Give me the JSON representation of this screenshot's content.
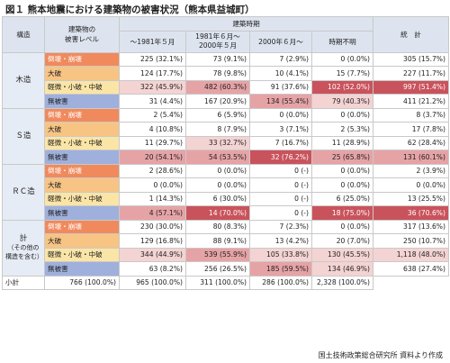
{
  "title": "図１ 熊本地震における建築物の被害状況（熊本県益城町）",
  "header": {
    "structure": "構造",
    "level_line1": "建築物の",
    "level_line2": "被害レベル",
    "period_group": "建築時期",
    "p1": "～1981年５月",
    "p2_line1": "1981年６月～",
    "p2_line2": "2000年５月",
    "p3": "2000年６月～",
    "p4": "時期不明",
    "total": "統　計"
  },
  "level_colors": [
    "#f08a5d",
    "#f7c484",
    "#fbe5a6",
    "#9fb0dc"
  ],
  "value_colors": {
    "dark": "#c9535c",
    "mid": "#e6a3a6",
    "light": "#f4d3d3"
  },
  "groups": [
    {
      "name": "木造",
      "rows": [
        {
          "level": "倒壊・崩壊",
          "v": [
            "225 (32.1%)",
            "73 (9.1%)",
            "7 (2.9%)",
            "0 (0.0%)",
            "305 (15.7%)"
          ],
          "h": [
            "",
            "",
            "",
            "",
            ""
          ]
        },
        {
          "level": "大破",
          "v": [
            "124 (17.7%)",
            "78 (9.8%)",
            "10 (4.1%)",
            "15 (7.7%)",
            "227 (11.7%)"
          ],
          "h": [
            "",
            "",
            "",
            "",
            ""
          ]
        },
        {
          "level": "軽微・小破・中破",
          "v": [
            "322 (45.9%)",
            "482 (60.3%)",
            "91 (37.6%)",
            "102 (52.0%)",
            "997 (51.4%)"
          ],
          "h": [
            "light",
            "mid",
            "",
            "dark",
            "dark"
          ]
        },
        {
          "level": "無被害",
          "v": [
            "31 (4.4%)",
            "167 (20.9%)",
            "134 (55.4%)",
            "79 (40.3%)",
            "411 (21.2%)"
          ],
          "h": [
            "",
            "",
            "mid",
            "light",
            ""
          ]
        }
      ]
    },
    {
      "name": "Ｓ造",
      "rows": [
        {
          "level": "倒壊・崩壊",
          "v": [
            "2 (5.4%)",
            "6 (5.9%)",
            "0 (0.0%)",
            "0 (0.0%)",
            "8 (3.7%)"
          ],
          "h": [
            "",
            "",
            "",
            "",
            ""
          ]
        },
        {
          "level": "大破",
          "v": [
            "4 (10.8%)",
            "8 (7.9%)",
            "3 (7.1%)",
            "2 (5.3%)",
            "17 (7.8%)"
          ],
          "h": [
            "",
            "",
            "",
            "",
            ""
          ]
        },
        {
          "level": "軽微・小破・中破",
          "v": [
            "11 (29.7%)",
            "33 (32.7%)",
            "7 (16.7%)",
            "11 (28.9%)",
            "62 (28.4%)"
          ],
          "h": [
            "",
            "light",
            "",
            "",
            ""
          ]
        },
        {
          "level": "無被害",
          "v": [
            "20 (54.1%)",
            "54 (53.5%)",
            "32 (76.2%)",
            "25 (65.8%)",
            "131 (60.1%)"
          ],
          "h": [
            "mid",
            "mid",
            "dark",
            "mid",
            "mid"
          ]
        }
      ]
    },
    {
      "name": "ＲＣ造",
      "rows": [
        {
          "level": "倒壊・崩壊",
          "v": [
            "2 (28.6%)",
            "0 (0.0%)",
            "0 (-)",
            "0 (0.0%)",
            "2 (3.9%)"
          ],
          "h": [
            "",
            "",
            "",
            "",
            ""
          ]
        },
        {
          "level": "大破",
          "v": [
            "0 (0.0%)",
            "0 (0.0%)",
            "0 (-)",
            "0 (0.0%)",
            "0 (0.0%)"
          ],
          "h": [
            "",
            "",
            "",
            "",
            ""
          ]
        },
        {
          "level": "軽微・小破・中破",
          "v": [
            "1 (14.3%)",
            "6 (30.0%)",
            "0 (-)",
            "6 (25.0%)",
            "13 (25.5%)"
          ],
          "h": [
            "",
            "",
            "",
            "",
            ""
          ]
        },
        {
          "level": "無被害",
          "v": [
            "4 (57.1%)",
            "14 (70.0%)",
            "0 (-)",
            "18 (75.0%)",
            "36 (70.6%)"
          ],
          "h": [
            "mid",
            "dark",
            "",
            "dark",
            "dark"
          ]
        }
      ]
    },
    {
      "name_line1": "計",
      "name_line2": "（その他の",
      "name_line3": "構造を含む）",
      "rows": [
        {
          "level": "倒壊・崩壊",
          "v": [
            "230 (30.0%)",
            "80 (8.3%)",
            "7 (2.3%)",
            "0 (0.0%)",
            "317 (13.6%)"
          ],
          "h": [
            "",
            "",
            "",
            "",
            ""
          ]
        },
        {
          "level": "大破",
          "v": [
            "129 (16.8%)",
            "88 (9.1%)",
            "13 (4.2%)",
            "20 (7.0%)",
            "250 (10.7%)"
          ],
          "h": [
            "",
            "",
            "",
            "",
            ""
          ]
        },
        {
          "level": "軽微・小破・中破",
          "v": [
            "344 (44.9%)",
            "539 (55.9%)",
            "105 (33.8%)",
            "130 (45.5%)",
            "1,118 (48.0%)"
          ],
          "h": [
            "light",
            "mid",
            "light",
            "light",
            "light"
          ]
        },
        {
          "level": "無被害",
          "v": [
            "63 (8.2%)",
            "256 (26.5%)",
            "185 (59.5%)",
            "134 (46.9%)",
            "638 (27.4%)"
          ],
          "h": [
            "",
            "",
            "mid",
            "light",
            ""
          ]
        }
      ]
    }
  ],
  "subtotal": {
    "label": "小計",
    "v": [
      "766 (100.0%)",
      "965 (100.0%)",
      "311 (100.0%)",
      "286 (100.0%)",
      "2,328 (100.0%)"
    ]
  },
  "source": "国土技術政策総合研究所 資料より作成"
}
